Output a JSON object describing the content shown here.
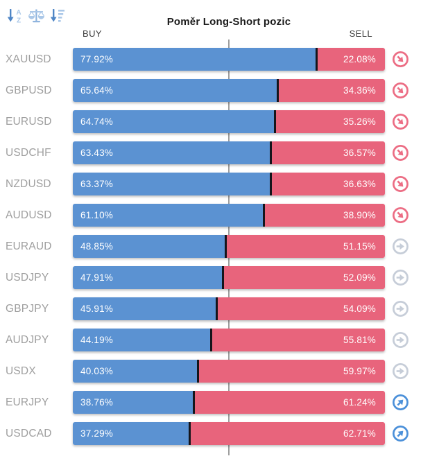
{
  "header": {
    "title": "Poměr Long-Short pozic",
    "buy_label": "BUY",
    "sell_label": "SELL"
  },
  "toolbar": {
    "icons": [
      "sort-alphabetical-icon",
      "balance-scale-icon",
      "sort-amount-icon"
    ],
    "alpha_top": "A",
    "alpha_bottom": "Z"
  },
  "colors": {
    "buy_bar": "#5b92d2",
    "sell_bar": "#e8647c",
    "divider": "#15151b",
    "pair_label": "#9e9e9e",
    "header_label": "#3d3d3d",
    "title": "#1b1b1b",
    "center_line": "#9e9e9e",
    "trend_down": "#ec6d84",
    "trend_neutral": "#c6cdd8",
    "trend_up": "#4b90d9",
    "toolbar_dark": "#4f86c6",
    "toolbar_light": "#abc8e8"
  },
  "rows": [
    {
      "pair": "XAUUSD",
      "buy_pct": 77.92,
      "sell_pct": 22.08,
      "buy_label": "77.92%",
      "sell_label": "22.08%",
      "trend": "down"
    },
    {
      "pair": "GBPUSD",
      "buy_pct": 65.64,
      "sell_pct": 34.36,
      "buy_label": "65.64%",
      "sell_label": "34.36%",
      "trend": "down"
    },
    {
      "pair": "EURUSD",
      "buy_pct": 64.74,
      "sell_pct": 35.26,
      "buy_label": "64.74%",
      "sell_label": "35.26%",
      "trend": "down"
    },
    {
      "pair": "USDCHF",
      "buy_pct": 63.43,
      "sell_pct": 36.57,
      "buy_label": "63.43%",
      "sell_label": "36.57%",
      "trend": "down"
    },
    {
      "pair": "NZDUSD",
      "buy_pct": 63.37,
      "sell_pct": 36.63,
      "buy_label": "63.37%",
      "sell_label": "36.63%",
      "trend": "down"
    },
    {
      "pair": "AUDUSD",
      "buy_pct": 61.1,
      "sell_pct": 38.9,
      "buy_label": "61.10%",
      "sell_label": "38.90%",
      "trend": "down"
    },
    {
      "pair": "EURAUD",
      "buy_pct": 48.85,
      "sell_pct": 51.15,
      "buy_label": "48.85%",
      "sell_label": "51.15%",
      "trend": "neutral"
    },
    {
      "pair": "USDJPY",
      "buy_pct": 47.91,
      "sell_pct": 52.09,
      "buy_label": "47.91%",
      "sell_label": "52.09%",
      "trend": "neutral"
    },
    {
      "pair": "GBPJPY",
      "buy_pct": 45.91,
      "sell_pct": 54.09,
      "buy_label": "45.91%",
      "sell_label": "54.09%",
      "trend": "neutral"
    },
    {
      "pair": "AUDJPY",
      "buy_pct": 44.19,
      "sell_pct": 55.81,
      "buy_label": "44.19%",
      "sell_label": "55.81%",
      "trend": "neutral"
    },
    {
      "pair": "USDX",
      "buy_pct": 40.03,
      "sell_pct": 59.97,
      "buy_label": "40.03%",
      "sell_label": "59.97%",
      "trend": "neutral"
    },
    {
      "pair": "EURJPY",
      "buy_pct": 38.76,
      "sell_pct": 61.24,
      "buy_label": "38.76%",
      "sell_label": "61.24%",
      "trend": "up"
    },
    {
      "pair": "USDCAD",
      "buy_pct": 37.29,
      "sell_pct": 62.71,
      "buy_label": "37.29%",
      "sell_label": "62.71%",
      "trend": "up"
    }
  ],
  "chart_data": {
    "type": "bar",
    "orientation": "horizontal",
    "stacked": true,
    "title": "Poměr Long-Short pozic",
    "categories": [
      "XAUUSD",
      "GBPUSD",
      "EURUSD",
      "USDCHF",
      "NZDUSD",
      "AUDUSD",
      "EURAUD",
      "USDJPY",
      "GBPJPY",
      "AUDJPY",
      "USDX",
      "EURJPY",
      "USDCAD"
    ],
    "series": [
      {
        "name": "BUY",
        "color": "#5b92d2",
        "values": [
          77.92,
          65.64,
          64.74,
          63.43,
          63.37,
          61.1,
          48.85,
          47.91,
          45.91,
          44.19,
          40.03,
          38.76,
          37.29
        ]
      },
      {
        "name": "SELL",
        "color": "#e8647c",
        "values": [
          22.08,
          34.36,
          35.26,
          36.57,
          36.63,
          38.9,
          51.15,
          52.09,
          54.09,
          55.81,
          59.97,
          61.24,
          62.71
        ]
      }
    ],
    "xlim": [
      0,
      100
    ],
    "center_marker": 50,
    "grid": false,
    "legend_position": "top",
    "trend_indicators": [
      "down",
      "down",
      "down",
      "down",
      "down",
      "down",
      "neutral",
      "neutral",
      "neutral",
      "neutral",
      "neutral",
      "up",
      "up"
    ]
  }
}
